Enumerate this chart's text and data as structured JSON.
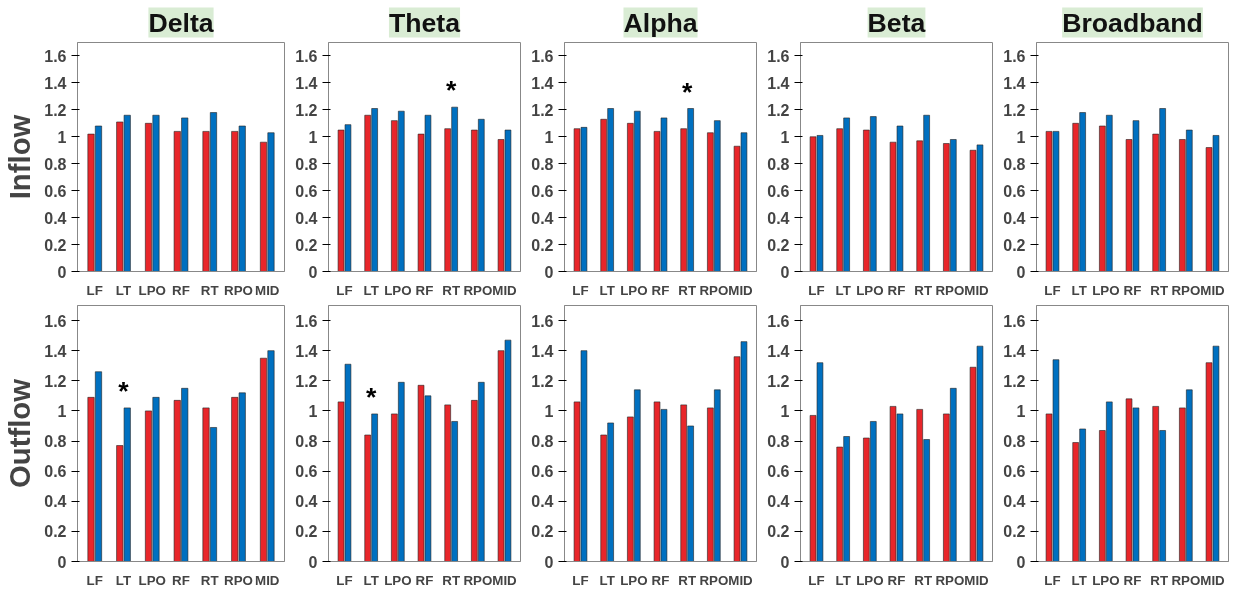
{
  "chart_data": [
    {
      "type": "bar",
      "title": "Delta",
      "ylabel": "Inflow",
      "categories": [
        "LF",
        "LT",
        "LPO",
        "RF",
        "RT",
        "RPO",
        "MID"
      ],
      "ylim": [
        0,
        1.7
      ],
      "yticks": [
        0,
        0.2,
        0.4,
        0.6,
        0.8,
        1,
        1.2,
        1.4,
        1.6
      ],
      "grid": false,
      "series": [
        {
          "color": "#e8262a",
          "values": [
            1.02,
            1.11,
            1.1,
            1.04,
            1.04,
            1.04,
            0.96
          ]
        },
        {
          "color": "#0070c0",
          "values": [
            1.08,
            1.16,
            1.16,
            1.14,
            1.18,
            1.08,
            1.03
          ]
        }
      ]
    },
    {
      "type": "bar",
      "title": "Theta",
      "categories": [
        "LF",
        "LT",
        "LPO",
        "RF",
        "RT",
        "RPO",
        "MID"
      ],
      "ylim": [
        0,
        1.7
      ],
      "yticks": [
        0,
        0.2,
        0.4,
        0.6,
        0.8,
        1,
        1.2,
        1.4,
        1.6
      ],
      "grid": false,
      "series": [
        {
          "color": "#e8262a",
          "values": [
            1.05,
            1.16,
            1.12,
            1.02,
            1.06,
            1.05,
            0.98
          ]
        },
        {
          "color": "#0070c0",
          "values": [
            1.09,
            1.21,
            1.19,
            1.16,
            1.22,
            1.13,
            1.05
          ]
        }
      ],
      "annotations": [
        {
          "text": "*",
          "x": "RT",
          "y": 1.22
        }
      ]
    },
    {
      "type": "bar",
      "title": "Alpha",
      "categories": [
        "LF",
        "LT",
        "LPO",
        "RF",
        "RT",
        "RPO",
        "MID"
      ],
      "ylim": [
        0,
        1.7
      ],
      "yticks": [
        0,
        0.2,
        0.4,
        0.6,
        0.8,
        1,
        1.2,
        1.4,
        1.6
      ],
      "grid": false,
      "series": [
        {
          "color": "#e8262a",
          "values": [
            1.06,
            1.13,
            1.1,
            1.04,
            1.06,
            1.03,
            0.93
          ]
        },
        {
          "color": "#0070c0",
          "values": [
            1.07,
            1.21,
            1.19,
            1.14,
            1.21,
            1.12,
            1.03
          ]
        }
      ],
      "annotations": [
        {
          "text": "*",
          "x": "RT",
          "y": 1.21
        }
      ]
    },
    {
      "type": "bar",
      "title": "Beta",
      "categories": [
        "LF",
        "LT",
        "LPO",
        "RF",
        "RT",
        "RPO",
        "MID"
      ],
      "ylim": [
        0,
        1.7
      ],
      "yticks": [
        0,
        0.2,
        0.4,
        0.6,
        0.8,
        1,
        1.2,
        1.4,
        1.6
      ],
      "grid": false,
      "series": [
        {
          "color": "#e8262a",
          "values": [
            1.0,
            1.06,
            1.05,
            0.96,
            0.97,
            0.95,
            0.9
          ]
        },
        {
          "color": "#0070c0",
          "values": [
            1.01,
            1.14,
            1.15,
            1.08,
            1.16,
            0.98,
            0.94
          ]
        }
      ]
    },
    {
      "type": "bar",
      "title": "Broadband",
      "categories": [
        "LF",
        "LT",
        "LPO",
        "RF",
        "RT",
        "RPO",
        "MID"
      ],
      "ylim": [
        0,
        1.7
      ],
      "yticks": [
        0,
        0.2,
        0.4,
        0.6,
        0.8,
        1,
        1.2,
        1.4,
        1.6
      ],
      "grid": false,
      "series": [
        {
          "color": "#e8262a",
          "values": [
            1.04,
            1.1,
            1.08,
            0.98,
            1.02,
            0.98,
            0.92
          ]
        },
        {
          "color": "#0070c0",
          "values": [
            1.04,
            1.18,
            1.16,
            1.12,
            1.21,
            1.05,
            1.01
          ]
        }
      ]
    },
    {
      "type": "bar",
      "ylabel": "Outflow",
      "categories": [
        "LF",
        "LT",
        "LPO",
        "RF",
        "RT",
        "RPO",
        "MID"
      ],
      "ylim": [
        0,
        1.7
      ],
      "yticks": [
        0,
        0.2,
        0.4,
        0.6,
        0.8,
        1,
        1.2,
        1.4,
        1.6
      ],
      "grid": false,
      "series": [
        {
          "color": "#e8262a",
          "values": [
            1.09,
            0.77,
            1.0,
            1.07,
            1.02,
            1.09,
            1.35
          ]
        },
        {
          "color": "#0070c0",
          "values": [
            1.26,
            1.02,
            1.09,
            1.15,
            0.89,
            1.12,
            1.4
          ]
        }
      ],
      "annotations": [
        {
          "text": "*",
          "x": "LT",
          "y": 1.02
        }
      ]
    },
    {
      "type": "bar",
      "categories": [
        "LF",
        "LT",
        "LPO",
        "RF",
        "RT",
        "RPO",
        "MID"
      ],
      "ylim": [
        0,
        1.7
      ],
      "yticks": [
        0,
        0.2,
        0.4,
        0.6,
        0.8,
        1,
        1.2,
        1.4,
        1.6
      ],
      "grid": false,
      "series": [
        {
          "color": "#e8262a",
          "values": [
            1.06,
            0.84,
            0.98,
            1.17,
            1.04,
            1.07,
            1.4
          ]
        },
        {
          "color": "#0070c0",
          "values": [
            1.31,
            0.98,
            1.19,
            1.1,
            0.93,
            1.19,
            1.47
          ]
        }
      ],
      "annotations": [
        {
          "text": "*",
          "x": "LT",
          "y": 0.98
        }
      ]
    },
    {
      "type": "bar",
      "categories": [
        "LF",
        "LT",
        "LPO",
        "RF",
        "RT",
        "RPO",
        "MID"
      ],
      "ylim": [
        0,
        1.7
      ],
      "yticks": [
        0,
        0.2,
        0.4,
        0.6,
        0.8,
        1,
        1.2,
        1.4,
        1.6
      ],
      "grid": false,
      "series": [
        {
          "color": "#e8262a",
          "values": [
            1.06,
            0.84,
            0.96,
            1.06,
            1.04,
            1.02,
            1.36
          ]
        },
        {
          "color": "#0070c0",
          "values": [
            1.4,
            0.92,
            1.14,
            1.01,
            0.9,
            1.14,
            1.46
          ]
        }
      ]
    },
    {
      "type": "bar",
      "categories": [
        "LF",
        "LT",
        "LPO",
        "RF",
        "RT",
        "RPO",
        "MID"
      ],
      "ylim": [
        0,
        1.7
      ],
      "yticks": [
        0,
        0.2,
        0.4,
        0.6,
        0.8,
        1,
        1.2,
        1.4,
        1.6
      ],
      "grid": false,
      "series": [
        {
          "color": "#e8262a",
          "values": [
            0.97,
            0.76,
            0.82,
            1.03,
            1.01,
            0.98,
            1.29
          ]
        },
        {
          "color": "#0070c0",
          "values": [
            1.32,
            0.83,
            0.93,
            0.98,
            0.81,
            1.15,
            1.43
          ]
        }
      ]
    },
    {
      "type": "bar",
      "categories": [
        "LF",
        "LT",
        "LPO",
        "RF",
        "RT",
        "RPO",
        "MID"
      ],
      "ylim": [
        0,
        1.7
      ],
      "yticks": [
        0,
        0.2,
        0.4,
        0.6,
        0.8,
        1,
        1.2,
        1.4,
        1.6
      ],
      "grid": false,
      "series": [
        {
          "color": "#e8262a",
          "values": [
            0.98,
            0.79,
            0.87,
            1.08,
            1.03,
            1.02,
            1.32
          ]
        },
        {
          "color": "#0070c0",
          "values": [
            1.34,
            0.88,
            1.06,
            1.02,
            0.87,
            1.14,
            1.43
          ]
        }
      ]
    }
  ]
}
